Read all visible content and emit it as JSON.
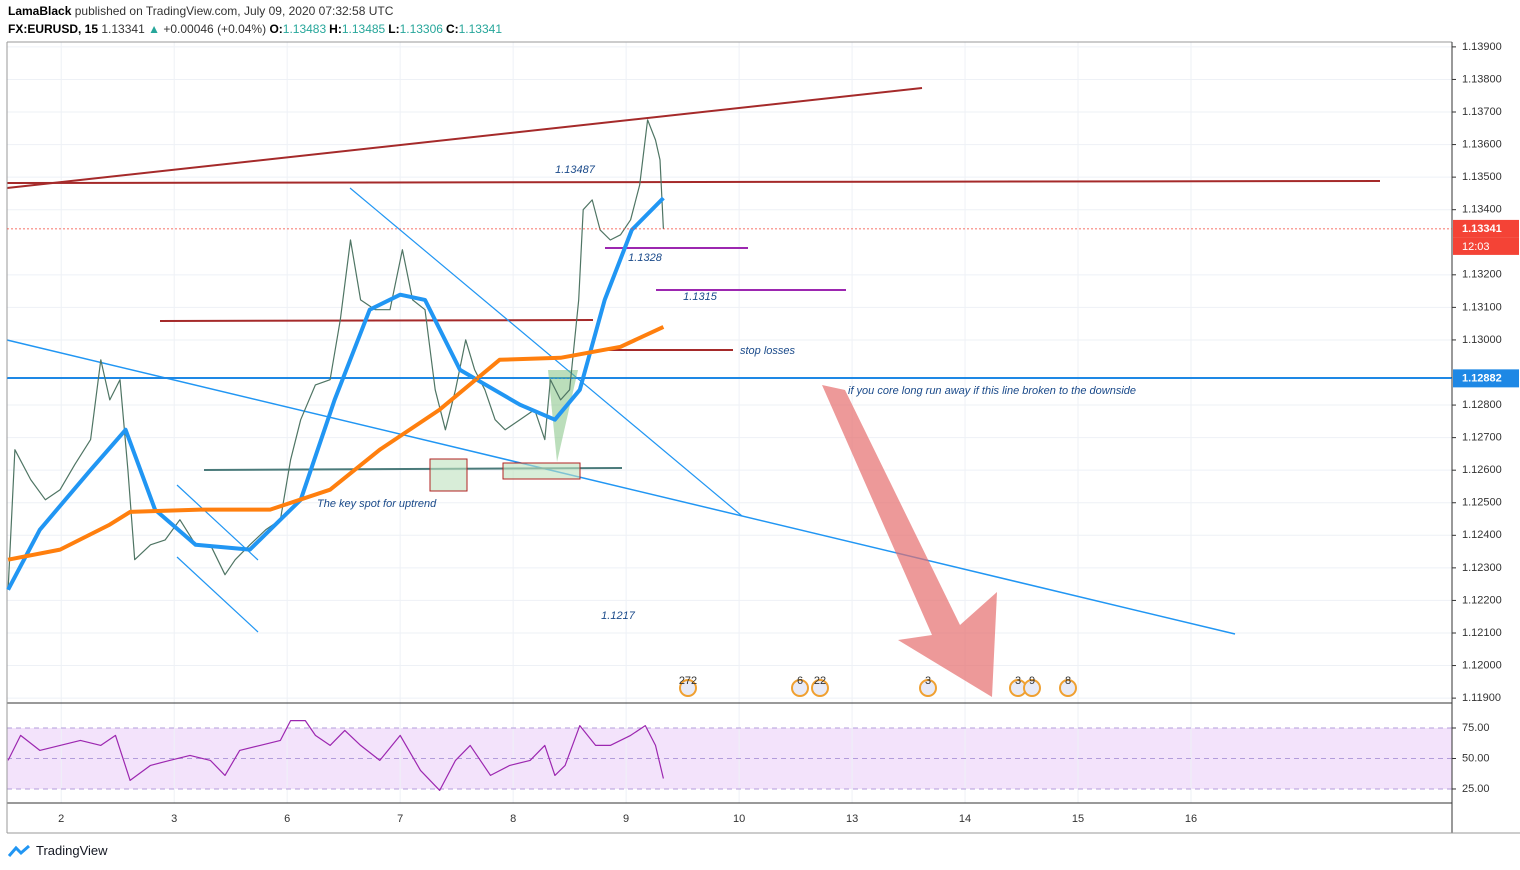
{
  "header": {
    "publisher": "LamaBlack",
    "published": "published on TradingView.com, July 09, 2020 07:32:58 UTC",
    "symbol": "FX:EURUSD, 15",
    "last": "1.13341",
    "arrow": "▲",
    "change": "+0.00046 (+0.04%)",
    "ohlc": [
      {
        "key": "O:",
        "value": "1.13483"
      },
      {
        "key": "H:",
        "value": "1.13485"
      },
      {
        "key": "L:",
        "value": "1.13306"
      },
      {
        "key": "C:",
        "value": "1.13341"
      }
    ]
  },
  "chart_data": [
    {
      "type": "line",
      "xlim": [
        -0.48,
        12.31
      ],
      "ylim": [
        1.11885,
        1.13915
      ],
      "xticks": [
        {
          "value": 0,
          "label": "2"
        },
        {
          "value": 1,
          "label": "3"
        },
        {
          "value": 2,
          "label": "6"
        },
        {
          "value": 3,
          "label": "7"
        },
        {
          "value": 4,
          "label": "8"
        },
        {
          "value": 5,
          "label": "9"
        },
        {
          "value": 6,
          "label": "10"
        },
        {
          "value": 7,
          "label": "13"
        },
        {
          "value": 8,
          "label": "14"
        },
        {
          "value": 9,
          "label": "15"
        },
        {
          "value": 10,
          "label": "16"
        }
      ],
      "yticks": [
        {
          "value": 1.139,
          "label": "1.13900"
        },
        {
          "value": 1.138,
          "label": "1.13800"
        },
        {
          "value": 1.137,
          "label": "1.13700"
        },
        {
          "value": 1.136,
          "label": "1.13600"
        },
        {
          "value": 1.135,
          "label": "1.13500"
        },
        {
          "value": 1.134,
          "label": "1.13400"
        },
        {
          "value": 1.132,
          "label": "1.13200"
        },
        {
          "value": 1.131,
          "label": "1.13100"
        },
        {
          "value": 1.13,
          "label": "1.13000"
        },
        {
          "value": 1.128,
          "label": "1.12800"
        },
        {
          "value": 1.127,
          "label": "1.12700"
        },
        {
          "value": 1.126,
          "label": "1.12600"
        },
        {
          "value": 1.125,
          "label": "1.12500"
        },
        {
          "value": 1.124,
          "label": "1.12400"
        },
        {
          "value": 1.123,
          "label": "1.12300"
        },
        {
          "value": 1.122,
          "label": "1.12200"
        },
        {
          "value": 1.121,
          "label": "1.12100"
        },
        {
          "value": 1.12,
          "label": "1.12000"
        },
        {
          "value": 1.119,
          "label": "1.11900"
        }
      ],
      "grid": true,
      "series": [
        {
          "color": "#4f7564",
          "width": 1.2,
          "x": [
            -0.47,
            -0.41,
            -0.27,
            -0.14,
            -0.01,
            0.12,
            0.26,
            0.35,
            0.43,
            0.52,
            0.59,
            0.65,
            0.79,
            0.92,
            1.05,
            1.19,
            1.32,
            1.45,
            1.54,
            1.67,
            1.81,
            1.94,
            2.03,
            2.12,
            2.25,
            2.38,
            2.47,
            2.56,
            2.65,
            2.78,
            2.91,
            3.02,
            3.11,
            3.22,
            3.31,
            3.4,
            3.49,
            3.58,
            3.66,
            3.75,
            3.84,
            3.93,
            4.06,
            4.19,
            4.28,
            4.33,
            4.42,
            4.5,
            4.58,
            4.62,
            4.7,
            4.77,
            4.86,
            4.95,
            5.04,
            5.12,
            5.19,
            5.26,
            5.3,
            5.33
          ],
          "values": [
            1.12233,
            1.12663,
            1.12571,
            1.12509,
            1.1254,
            1.12617,
            1.12694,
            1.12939,
            1.12816,
            1.12878,
            1.12601,
            1.12325,
            1.12371,
            1.12386,
            1.12448,
            1.12371,
            1.12371,
            1.12279,
            1.12325,
            1.12371,
            1.12417,
            1.12448,
            1.12632,
            1.12755,
            1.12862,
            1.12878,
            1.13062,
            1.13307,
            1.13123,
            1.13093,
            1.13093,
            1.13277,
            1.13123,
            1.13093,
            1.12847,
            1.12724,
            1.12847,
            1.13,
            1.12908,
            1.12847,
            1.12755,
            1.12724,
            1.12755,
            1.12786,
            1.12694,
            1.12878,
            1.12816,
            1.12847,
            1.13123,
            1.134,
            1.1343,
            1.13338,
            1.13307,
            1.13323,
            1.13369,
            1.13476,
            1.13676,
            1.13614,
            1.13553,
            1.13341
          ]
        },
        {
          "color": "#2196f3",
          "width": 4,
          "x": [
            -0.47,
            -0.19,
            0.26,
            0.57,
            0.83,
            1.19,
            1.67,
            2.12,
            2.42,
            2.73,
            3.0,
            3.22,
            3.53,
            4.06,
            4.37,
            4.59,
            4.81,
            5.05,
            5.33
          ],
          "values": [
            1.12233,
            1.12417,
            1.12601,
            1.12724,
            1.12479,
            1.12371,
            1.12356,
            1.12509,
            1.12816,
            1.13093,
            1.13139,
            1.13123,
            1.12908,
            1.12801,
            1.12755,
            1.12847,
            1.13123,
            1.13338,
            1.13436
          ]
        },
        {
          "color": "#ff7f0e",
          "width": 4,
          "x": [
            -0.47,
            -0.01,
            0.43,
            0.61,
            1.23,
            1.85,
            2.38,
            2.82,
            3.35,
            3.88,
            4.42,
            4.95,
            5.33
          ],
          "values": [
            1.12325,
            1.12356,
            1.12433,
            1.12472,
            1.12479,
            1.12479,
            1.1254,
            1.12663,
            1.12786,
            1.12939,
            1.12945,
            1.12979,
            1.1304
          ]
        }
      ],
      "price_tags": [
        {
          "value": 1.13341,
          "label": "1.13341",
          "time": "12:03",
          "color": "#f44336"
        },
        {
          "value": 1.12882,
          "label": "1.12882",
          "color": "#1e88e5"
        }
      ],
      "annotations": [
        "1.13487",
        "1.1328",
        "1.1315",
        "stop losses",
        "1.1217",
        "The key spot for uptrend",
        "if you core long run away if this line broken to the downside"
      ],
      "events": [
        "272",
        "6",
        "22",
        "3",
        "3",
        "9",
        "8"
      ]
    },
    {
      "type": "line",
      "xlim": [
        -0.48,
        12.31
      ],
      "ylim": [
        13.5,
        95.5
      ],
      "yticks": [
        {
          "value": 75,
          "label": "75.00"
        },
        {
          "value": 50,
          "label": "50.00"
        },
        {
          "value": 25,
          "label": "25.00"
        }
      ],
      "band_color": "#f3e3fb",
      "series": [
        {
          "color": "#9c27b0",
          "width": 1.2,
          "x": [
            -0.47,
            -0.36,
            -0.19,
            -0.01,
            0.17,
            0.35,
            0.48,
            0.61,
            0.79,
            0.96,
            1.14,
            1.32,
            1.45,
            1.58,
            1.76,
            1.94,
            2.03,
            2.16,
            2.25,
            2.38,
            2.51,
            2.65,
            2.82,
            3.0,
            3.18,
            3.35,
            3.49,
            3.62,
            3.8,
            3.97,
            4.15,
            4.28,
            4.37,
            4.46,
            4.59,
            4.73,
            4.86,
            5.04,
            5.17,
            5.26,
            5.33
          ],
          "values": [
            48.4,
            68.9,
            56.6,
            60.7,
            64.8,
            60.7,
            68.9,
            32,
            44.3,
            48.4,
            52.5,
            48.4,
            36.1,
            56.6,
            60.7,
            64.8,
            81.1,
            81.1,
            68.9,
            60.7,
            73,
            60.7,
            48.4,
            68.9,
            40.2,
            23.8,
            48.4,
            60.7,
            36.1,
            44.3,
            48.4,
            60.7,
            36.1,
            44.3,
            77,
            60.7,
            60.7,
            68.9,
            77,
            60.7,
            33.6
          ]
        }
      ]
    }
  ],
  "footer": {
    "brand": "TradingView"
  }
}
